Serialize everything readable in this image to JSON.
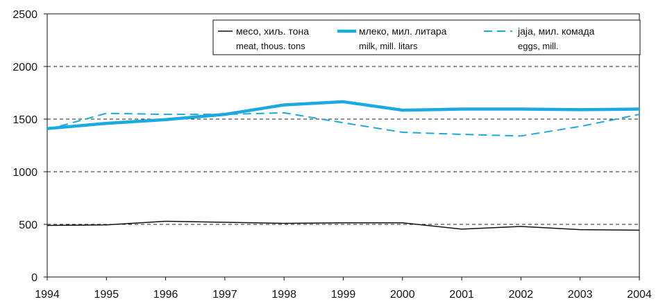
{
  "chart_data": {
    "type": "line",
    "title": "",
    "xlabel": "",
    "ylabel": "",
    "x": [
      1994,
      1995,
      1996,
      1997,
      1998,
      1999,
      2000,
      2001,
      2002,
      2003,
      2004
    ],
    "xticks": [
      "1994",
      "1995",
      "1996",
      "1997",
      "1998",
      "1999",
      "2000",
      "2001",
      "2002",
      "2003",
      "2004"
    ],
    "ylim": [
      0,
      2500
    ],
    "yticks": [
      "0",
      "500",
      "1000",
      "1500",
      "2000",
      "2500"
    ],
    "grid": "horizontal dashed",
    "legend_position": "top-right",
    "series": [
      {
        "name": "месо, хиљ. тона",
        "name_en": "meat, thous. tons",
        "style": "solid-thin",
        "color": "#111111",
        "values": [
          490,
          495,
          530,
          520,
          510,
          515,
          515,
          455,
          480,
          450,
          445
        ]
      },
      {
        "name": "млеко, мил. литара",
        "name_en": "milk, mill. litars",
        "style": "solid-thick",
        "color": "#1ba9e1",
        "values": [
          1410,
          1460,
          1495,
          1545,
          1635,
          1665,
          1585,
          1595,
          1595,
          1590,
          1595
        ]
      },
      {
        "name": "jaja, мил. комада",
        "name_en": "eggs, mill.",
        "style": "dashed",
        "color": "#1ba9e1",
        "values": [
          1400,
          1555,
          1545,
          1545,
          1560,
          1465,
          1375,
          1355,
          1340,
          1430,
          1545
        ]
      }
    ]
  }
}
